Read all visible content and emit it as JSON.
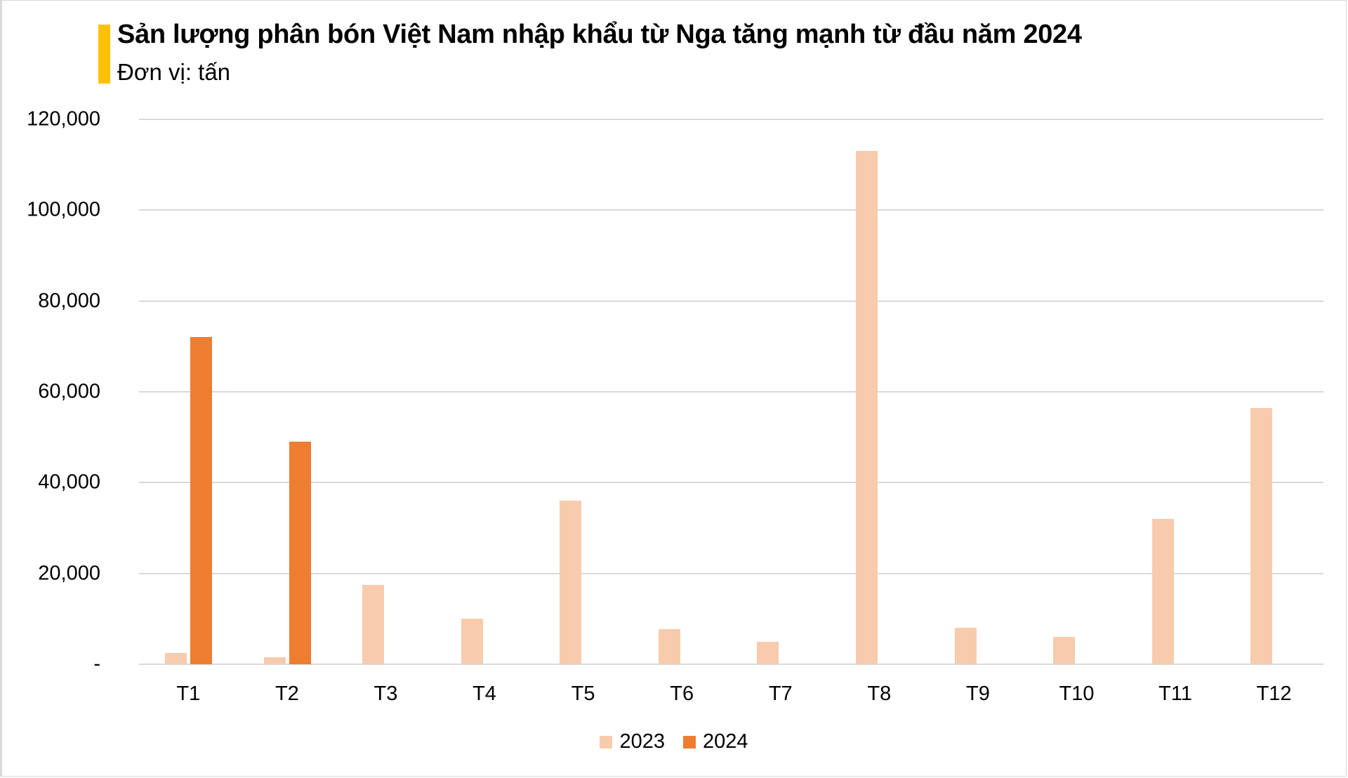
{
  "header": {
    "title": "Sản lượng phân bón Việt Nam nhập khẩu từ Nga tăng mạnh từ đầu năm 2024",
    "subtitle": "Đơn vị: tấn",
    "accent_color": "#ffc000"
  },
  "axis": {
    "y_ticks": [
      {
        "label": "120,000",
        "value": 120000
      },
      {
        "label": "100,000",
        "value": 100000
      },
      {
        "label": "80,000",
        "value": 80000
      },
      {
        "label": "60,000",
        "value": 60000
      },
      {
        "label": "40,000",
        "value": 40000
      },
      {
        "label": "20,000",
        "value": 20000
      },
      {
        "label": "-",
        "value": 0
      }
    ]
  },
  "legend": [
    {
      "label": "2023",
      "color": "#f8cbad"
    },
    {
      "label": "2024",
      "color": "#ed7d31"
    }
  ],
  "chart_data": {
    "type": "bar",
    "title": "Sản lượng phân bón Việt Nam nhập khẩu từ Nga tăng mạnh từ đầu năm 2024",
    "subtitle": "Đơn vị: tấn",
    "xlabel": "",
    "ylabel": "",
    "ylim": [
      0,
      120000
    ],
    "y_tick_labels": [
      "-",
      "20,000",
      "40,000",
      "60,000",
      "80,000",
      "100,000",
      "120,000"
    ],
    "grid": true,
    "legend_position": "bottom",
    "categories": [
      "T1",
      "T2",
      "T3",
      "T4",
      "T5",
      "T6",
      "T7",
      "T8",
      "T9",
      "T10",
      "T11",
      "T12"
    ],
    "series": [
      {
        "name": "2023",
        "color": "#f8cbad",
        "values": [
          2500,
          1500,
          17500,
          10000,
          36000,
          7700,
          4900,
          113000,
          8000,
          6000,
          32000,
          56500
        ]
      },
      {
        "name": "2024",
        "color": "#ed7d31",
        "values": [
          72000,
          49000,
          null,
          null,
          null,
          null,
          null,
          null,
          null,
          null,
          null,
          null
        ]
      }
    ]
  }
}
